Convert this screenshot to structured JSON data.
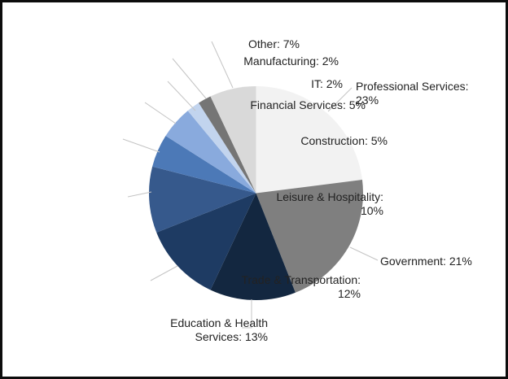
{
  "page": {
    "background": "#ffffff",
    "border_color": "#0d0d0d"
  },
  "chart_data": {
    "type": "pie",
    "title": "",
    "legend": "none",
    "start_angle_deg": 0,
    "direction": "clockwise",
    "label_format": "{name}: {value}%",
    "label_color": "#222222",
    "leader_line_color": "#c4c4c4",
    "slices": [
      {
        "name": "Professional Services",
        "value": 23,
        "color": "#f2f2f2"
      },
      {
        "name": "Government",
        "value": 21,
        "color": "#7f7f7f"
      },
      {
        "name": "Education & Health Services",
        "value": 13,
        "color": "#132740"
      },
      {
        "name": "Trade & Transportation",
        "value": 12,
        "color": "#1e3b63"
      },
      {
        "name": "Leisure & Hospitality",
        "value": 10,
        "color": "#36598c"
      },
      {
        "name": "Construction",
        "value": 5,
        "color": "#4c79b7"
      },
      {
        "name": "Financial Services",
        "value": 5,
        "color": "#89aadd"
      },
      {
        "name": "IT",
        "value": 2,
        "color": "#c2d4ee"
      },
      {
        "name": "Manufacturing",
        "value": 2,
        "color": "#757575"
      },
      {
        "name": "Other",
        "value": 7,
        "color": "#d9d9d9"
      }
    ]
  }
}
